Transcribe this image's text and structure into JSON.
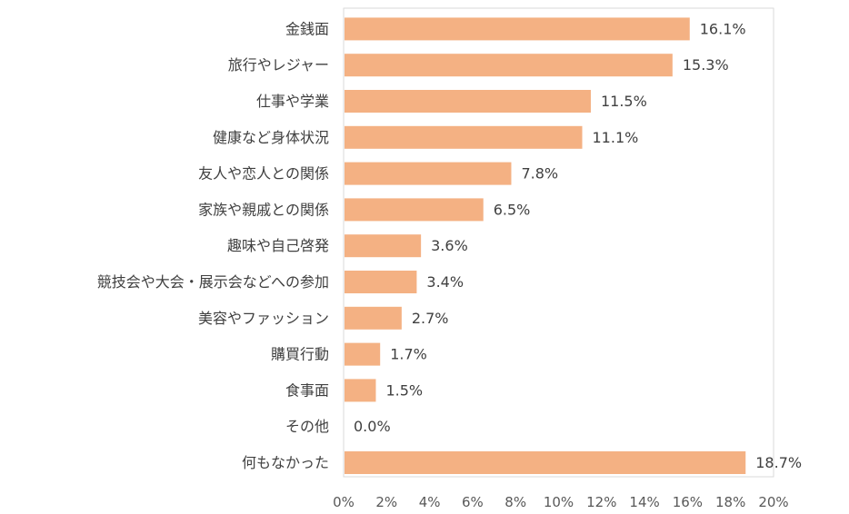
{
  "chart_data": {
    "type": "bar",
    "orientation": "horizontal",
    "title": "",
    "xlabel": "",
    "ylabel": "",
    "xlim": [
      0,
      20
    ],
    "grid": false,
    "legend": "none",
    "categories": [
      "金銭面",
      "旅行やレジャー",
      "仕事や学業",
      "健康など身体状況",
      "友人や恋人との関係",
      "家族や親戚との関係",
      "趣味や自己啓発",
      "競技会や大会・展示会などへの参加",
      "美容やファッション",
      "購買行動",
      "食事面",
      "その他",
      "何もなかった"
    ],
    "values": [
      16.1,
      15.3,
      11.5,
      11.1,
      7.8,
      6.5,
      3.6,
      3.4,
      2.7,
      1.7,
      1.5,
      0.0,
      18.7
    ],
    "data_labels": [
      "16.1%",
      "15.3%",
      "11.5%",
      "11.1%",
      "7.8%",
      "6.5%",
      "3.6%",
      "3.4%",
      "2.7%",
      "1.7%",
      "1.5%",
      "0.0%",
      "18.7%"
    ],
    "x_ticks": [
      "0%",
      "2%",
      "4%",
      "6%",
      "8%",
      "10%",
      "12%",
      "14%",
      "16%",
      "18%",
      "20%"
    ],
    "x_tick_values": [
      0,
      2,
      4,
      6,
      8,
      10,
      12,
      14,
      16,
      18,
      20
    ],
    "bar_color": "#F4B183",
    "axis_color": "#D9D9D9"
  }
}
